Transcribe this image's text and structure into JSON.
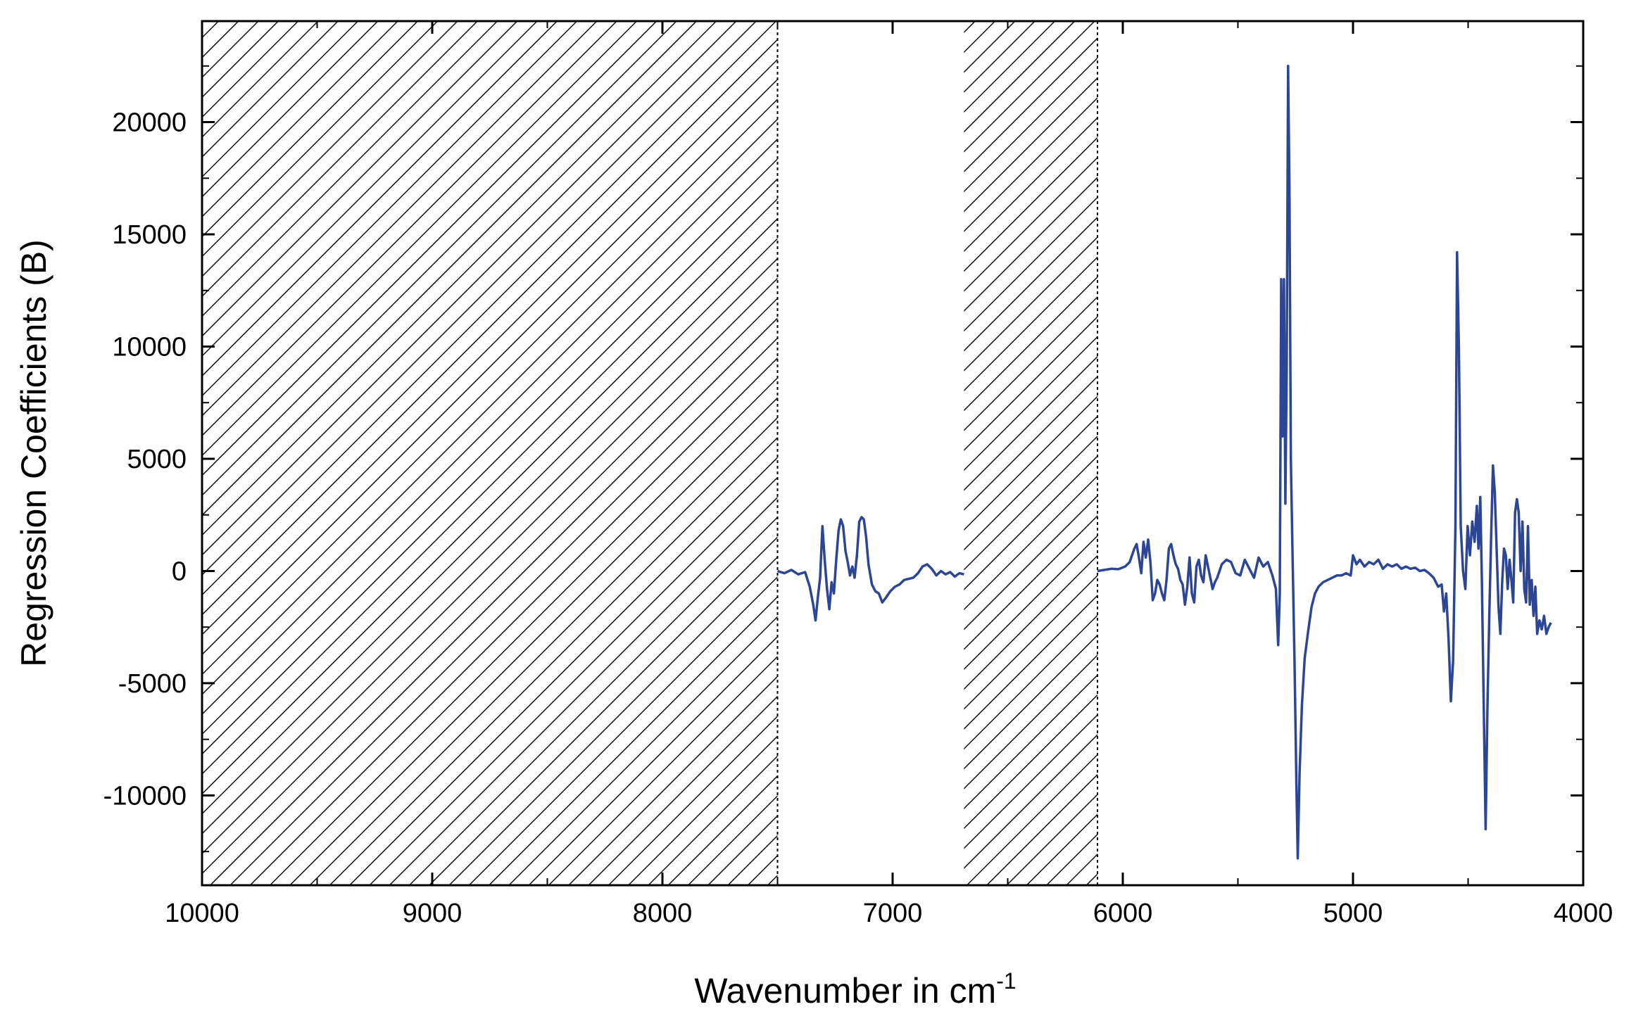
{
  "chart_data": {
    "type": "line",
    "xlabel": "Wavenumber in cm",
    "xlabel_superscript": "-1",
    "ylabel": "Regression Coefficients (B)",
    "xlim": [
      10000,
      4000
    ],
    "ylim": [
      -14000,
      24500
    ],
    "x_reversed": true,
    "grid": false,
    "legend": "none",
    "x_ticks": [
      {
        "value": 10000,
        "label": "10000"
      },
      {
        "value": 9000,
        "label": "9000"
      },
      {
        "value": 8000,
        "label": "8000"
      },
      {
        "value": 7000,
        "label": "7000"
      },
      {
        "value": 6000,
        "label": "6000"
      },
      {
        "value": 5000,
        "label": "5000"
      },
      {
        "value": 4000,
        "label": "4000"
      }
    ],
    "y_ticks": [
      {
        "value": 20000,
        "label": "20000"
      },
      {
        "value": 15000,
        "label": "15000"
      },
      {
        "value": 10000,
        "label": "10000"
      },
      {
        "value": 5000,
        "label": "5000"
      },
      {
        "value": 0,
        "label": "0"
      },
      {
        "value": -5000,
        "label": "-5000"
      },
      {
        "value": -10000,
        "label": "-10000"
      }
    ],
    "excluded_regions": [
      {
        "from": 10000,
        "to": 7500
      },
      {
        "from": 6690,
        "to": 6110
      }
    ],
    "boundary_lines": [
      7500,
      6110
    ],
    "series_color": "#2c4595",
    "series": [
      {
        "segments": [
          [
            [
              7500,
              0
            ],
            [
              7470,
              -100
            ],
            [
              7440,
              50
            ],
            [
              7410,
              -150
            ],
            [
              7380,
              -50
            ],
            [
              7360,
              -700
            ],
            [
              7345,
              -1500
            ],
            [
              7335,
              -2200
            ],
            [
              7325,
              -1200
            ],
            [
              7315,
              -300
            ],
            [
              7305,
              2000
            ],
            [
              7295,
              500
            ],
            [
              7285,
              -800
            ],
            [
              7275,
              -1700
            ],
            [
              7265,
              -500
            ],
            [
              7255,
              -1000
            ],
            [
              7245,
              500
            ],
            [
              7235,
              1800
            ],
            [
              7225,
              2300
            ],
            [
              7215,
              2000
            ],
            [
              7205,
              900
            ],
            [
              7195,
              400
            ],
            [
              7185,
              -200
            ],
            [
              7175,
              200
            ],
            [
              7165,
              -300
            ],
            [
              7155,
              700
            ],
            [
              7145,
              2200
            ],
            [
              7135,
              2400
            ],
            [
              7125,
              2300
            ],
            [
              7115,
              1500
            ],
            [
              7105,
              300
            ],
            [
              7090,
              -600
            ],
            [
              7075,
              -900
            ],
            [
              7060,
              -1000
            ],
            [
              7045,
              -1400
            ],
            [
              7030,
              -1200
            ],
            [
              7010,
              -900
            ],
            [
              6990,
              -700
            ],
            [
              6970,
              -600
            ],
            [
              6950,
              -400
            ],
            [
              6930,
              -350
            ],
            [
              6910,
              -300
            ],
            [
              6890,
              -100
            ],
            [
              6870,
              200
            ],
            [
              6850,
              300
            ],
            [
              6830,
              100
            ],
            [
              6810,
              -200
            ],
            [
              6790,
              0
            ],
            [
              6770,
              -150
            ],
            [
              6750,
              -50
            ],
            [
              6730,
              -250
            ],
            [
              6710,
              -100
            ],
            [
              6690,
              -150
            ]
          ],
          [
            [
              6110,
              0
            ],
            [
              6080,
              50
            ],
            [
              6050,
              100
            ],
            [
              6020,
              80
            ],
            [
              5990,
              200
            ],
            [
              5970,
              400
            ],
            [
              5960,
              700
            ],
            [
              5950,
              1000
            ],
            [
              5940,
              1200
            ],
            [
              5930,
              600
            ],
            [
              5920,
              -100
            ],
            [
              5910,
              1300
            ],
            [
              5900,
              600
            ],
            [
              5890,
              1400
            ],
            [
              5880,
              400
            ],
            [
              5870,
              -1300
            ],
            [
              5860,
              -1000
            ],
            [
              5850,
              -400
            ],
            [
              5840,
              -600
            ],
            [
              5830,
              -1000
            ],
            [
              5820,
              -1300
            ],
            [
              5810,
              -400
            ],
            [
              5800,
              1000
            ],
            [
              5790,
              1200
            ],
            [
              5780,
              700
            ],
            [
              5770,
              300
            ],
            [
              5760,
              100
            ],
            [
              5750,
              -400
            ],
            [
              5740,
              -600
            ],
            [
              5730,
              -1500
            ],
            [
              5720,
              -700
            ],
            [
              5710,
              600
            ],
            [
              5700,
              -1000
            ],
            [
              5690,
              -1400
            ],
            [
              5680,
              200
            ],
            [
              5670,
              500
            ],
            [
              5660,
              -200
            ],
            [
              5650,
              -500
            ],
            [
              5640,
              700
            ],
            [
              5630,
              200
            ],
            [
              5620,
              -300
            ],
            [
              5610,
              -800
            ],
            [
              5600,
              -500
            ],
            [
              5590,
              -300
            ],
            [
              5570,
              300
            ],
            [
              5550,
              500
            ],
            [
              5530,
              400
            ],
            [
              5510,
              -100
            ],
            [
              5490,
              -200
            ],
            [
              5470,
              500
            ],
            [
              5450,
              100
            ],
            [
              5430,
              -300
            ],
            [
              5410,
              600
            ],
            [
              5390,
              200
            ],
            [
              5370,
              400
            ],
            [
              5350,
              -200
            ],
            [
              5335,
              -800
            ],
            [
              5325,
              -3300
            ],
            [
              5318,
              -1000
            ],
            [
              5312,
              13000
            ],
            [
              5306,
              6000
            ],
            [
              5300,
              13000
            ],
            [
              5294,
              3000
            ],
            [
              5288,
              9000
            ],
            [
              5282,
              22500
            ],
            [
              5276,
              17000
            ],
            [
              5270,
              5000
            ],
            [
              5262,
              400
            ],
            [
              5254,
              -4000
            ],
            [
              5246,
              -9500
            ],
            [
              5240,
              -12800
            ],
            [
              5232,
              -9000
            ],
            [
              5222,
              -6000
            ],
            [
              5210,
              -3900
            ],
            [
              5195,
              -2700
            ],
            [
              5180,
              -1600
            ],
            [
              5165,
              -1000
            ],
            [
              5150,
              -700
            ],
            [
              5130,
              -500
            ],
            [
              5110,
              -400
            ],
            [
              5090,
              -300
            ],
            [
              5070,
              -200
            ],
            [
              5050,
              -200
            ],
            [
              5030,
              -100
            ],
            [
              5010,
              -200
            ],
            [
              5000,
              700
            ],
            [
              4985,
              300
            ],
            [
              4970,
              500
            ],
            [
              4950,
              200
            ],
            [
              4930,
              400
            ],
            [
              4910,
              300
            ],
            [
              4890,
              500
            ],
            [
              4870,
              100
            ],
            [
              4850,
              300
            ],
            [
              4830,
              200
            ],
            [
              4810,
              300
            ],
            [
              4790,
              100
            ],
            [
              4770,
              200
            ],
            [
              4750,
              100
            ],
            [
              4730,
              150
            ],
            [
              4710,
              0
            ],
            [
              4690,
              50
            ],
            [
              4670,
              -100
            ],
            [
              4650,
              -300
            ],
            [
              4630,
              -700
            ],
            [
              4615,
              -600
            ],
            [
              4605,
              -1800
            ],
            [
              4595,
              -1000
            ],
            [
              4585,
              -3000
            ],
            [
              4575,
              -5800
            ],
            [
              4565,
              -4000
            ],
            [
              4555,
              2000
            ],
            [
              4548,
              14200
            ],
            [
              4540,
              10000
            ],
            [
              4532,
              2000
            ],
            [
              4522,
              0
            ],
            [
              4512,
              -800
            ],
            [
              4502,
              2000
            ],
            [
              4492,
              700
            ],
            [
              4482,
              2200
            ],
            [
              4472,
              1300
            ],
            [
              4462,
              2900
            ],
            [
              4455,
              1000
            ],
            [
              4447,
              3300
            ],
            [
              4440,
              -500
            ],
            [
              4432,
              -6000
            ],
            [
              4424,
              -11500
            ],
            [
              4416,
              -6000
            ],
            [
              4408,
              -2000
            ],
            [
              4400,
              1500
            ],
            [
              4392,
              4700
            ],
            [
              4384,
              3500
            ],
            [
              4376,
              1000
            ],
            [
              4368,
              -1600
            ],
            [
              4360,
              -2800
            ],
            [
              4352,
              -500
            ],
            [
              4344,
              1000
            ],
            [
              4336,
              700
            ],
            [
              4328,
              -800
            ],
            [
              4320,
              500
            ],
            [
              4312,
              -400
            ],
            [
              4304,
              -1400
            ],
            [
              4296,
              2600
            ],
            [
              4288,
              3200
            ],
            [
              4280,
              2600
            ],
            [
              4272,
              0
            ],
            [
              4264,
              2200
            ],
            [
              4256,
              -800
            ],
            [
              4248,
              -1400
            ],
            [
              4240,
              2000
            ],
            [
              4232,
              -1500
            ],
            [
              4224,
              -400
            ],
            [
              4216,
              -2000
            ],
            [
              4208,
              -700
            ],
            [
              4200,
              -2800
            ],
            [
              4190,
              -2200
            ],
            [
              4180,
              -2600
            ],
            [
              4170,
              -2000
            ],
            [
              4160,
              -2800
            ],
            [
              4150,
              -2500
            ],
            [
              4140,
              -2300
            ]
          ]
        ]
      }
    ]
  }
}
